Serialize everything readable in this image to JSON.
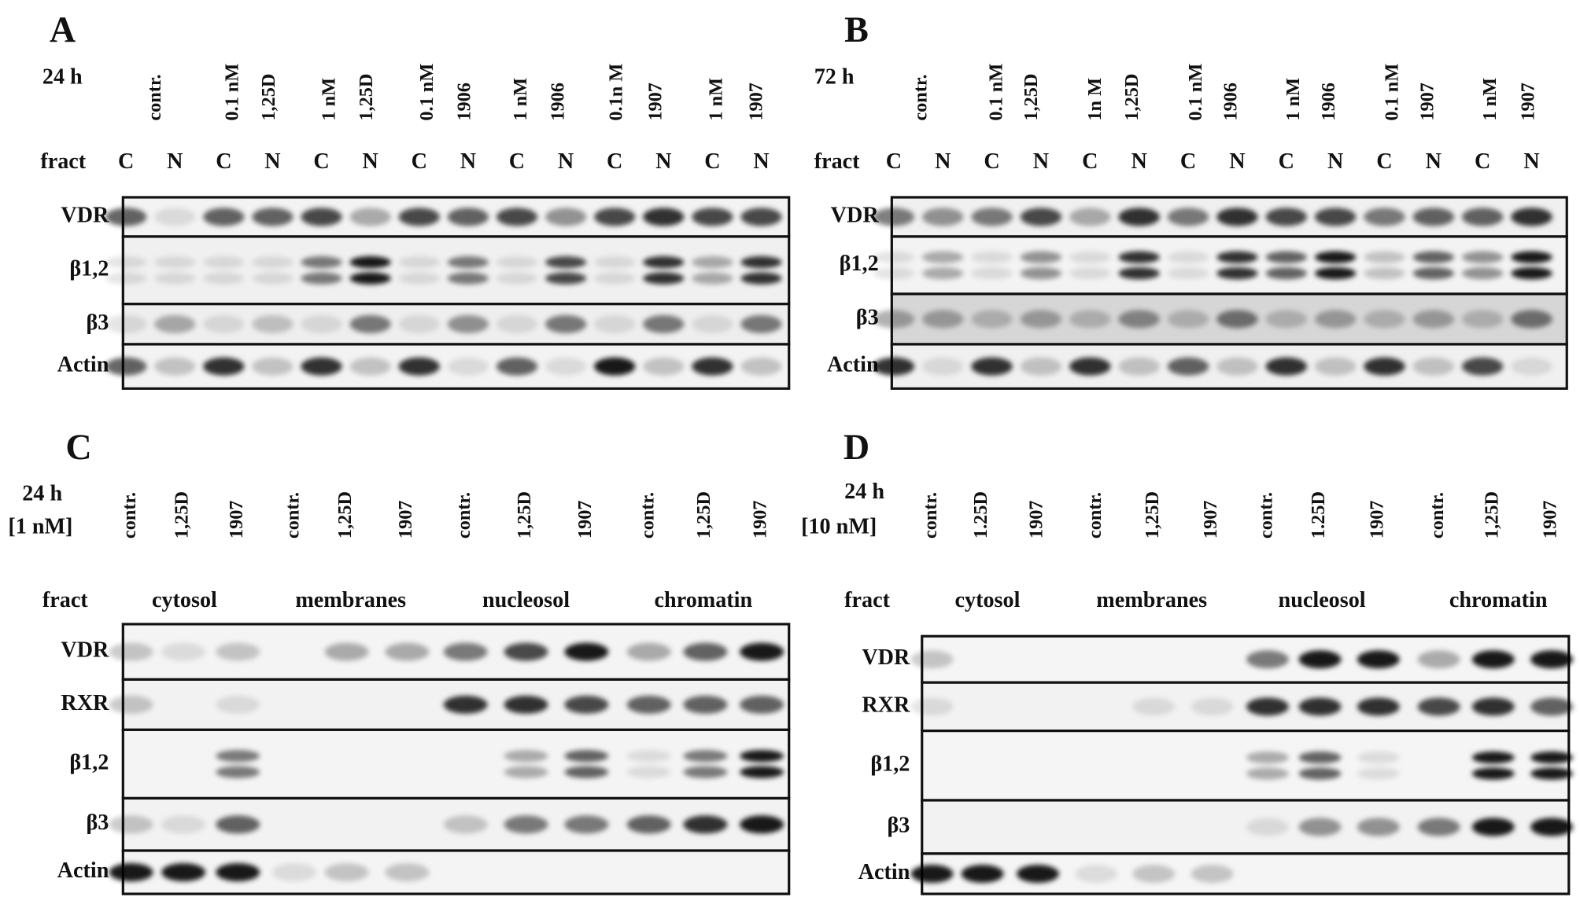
{
  "panels": [
    {
      "letter": "A",
      "time": "24 h",
      "lanes": [
        [
          "contr."
        ],
        [
          "0.1 nM",
          "1,25D"
        ],
        [
          "1 nM",
          "1,25D"
        ],
        [
          "0.1 nM",
          "1906"
        ],
        [
          "1 nM",
          "1906"
        ],
        [
          "0.1n M",
          "1907"
        ],
        [
          "1 nM",
          "1907"
        ]
      ],
      "fract_label": "fract",
      "fractions": [
        "C",
        "N",
        "C",
        "N",
        "C",
        "N",
        "C",
        "N",
        "C",
        "N",
        "C",
        "N",
        "C",
        "N"
      ],
      "rows": [
        "VDR",
        "β1,2",
        "β3",
        "Actin"
      ]
    },
    {
      "letter": "B",
      "time": "72 h",
      "lanes": [
        [
          "contr."
        ],
        [
          "0.1 nM",
          "1,25D"
        ],
        [
          "1n M",
          "1,25D"
        ],
        [
          "0.1 nM",
          "1906"
        ],
        [
          "1 nM",
          "1906"
        ],
        [
          "0.1 nM",
          "1907"
        ],
        [
          "1 nM",
          "1907"
        ]
      ],
      "fract_label": "fract",
      "fractions": [
        "C",
        "N",
        "C",
        "N",
        "C",
        "N",
        "C",
        "N",
        "C",
        "N",
        "C",
        "N",
        "C",
        "N"
      ],
      "rows": [
        "VDR",
        "β1,2",
        "β3",
        "Actin"
      ]
    },
    {
      "letter": "C",
      "time": "24 h",
      "concentration": "[1 nM]",
      "lanes": [
        [
          "contr."
        ],
        [
          "1,25D"
        ],
        [
          "1907"
        ],
        [
          "contr."
        ],
        [
          "1,25D"
        ],
        [
          "1907"
        ],
        [
          "contr."
        ],
        [
          "1,25D"
        ],
        [
          "1907"
        ],
        [
          "contr."
        ],
        [
          "1,25D"
        ],
        [
          "1907"
        ]
      ],
      "fract_label": "fract",
      "fractions": [
        "cytosol",
        "membranes",
        "nucleosol",
        "chromatin"
      ],
      "rows": [
        "VDR",
        "RXR",
        "β1,2",
        "β3",
        "Actin"
      ]
    },
    {
      "letter": "D",
      "time": "24 h",
      "concentration": "[10 nM]",
      "lanes": [
        [
          "contr."
        ],
        [
          "1.25D"
        ],
        [
          "1907"
        ],
        [
          "contr."
        ],
        [
          "1,25D"
        ],
        [
          "1907"
        ],
        [
          "contr."
        ],
        [
          "1.25D"
        ],
        [
          "1907"
        ],
        [
          "contr."
        ],
        [
          "1,25D"
        ],
        [
          "1907"
        ]
      ],
      "fract_label": "fract",
      "fractions": [
        "cytosol",
        "membranes",
        "nucleosol",
        "chromatin"
      ],
      "rows": [
        "VDR",
        "RXR",
        "β1,2",
        "β3",
        "Actin"
      ]
    }
  ]
}
